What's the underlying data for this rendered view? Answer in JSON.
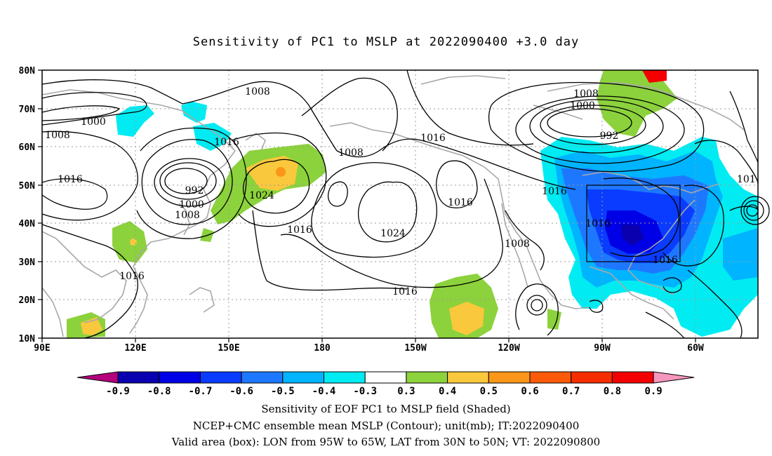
{
  "title": "Sensitivity of PC1 to MSLP at 2022090400 +3.0 day",
  "lat_labels": [
    "80N",
    "70N",
    "60N",
    "50N",
    "40N",
    "30N",
    "20N",
    "10N"
  ],
  "lon_labels": [
    "90E",
    "120E",
    "150E",
    "180",
    "150W",
    "120W",
    "90W",
    "60W"
  ],
  "contour_labels": [
    {
      "text": "1008"
    },
    {
      "text": "1000"
    },
    {
      "text": "1008"
    },
    {
      "text": "1016"
    },
    {
      "text": "1016"
    },
    {
      "text": "992"
    },
    {
      "text": "1000"
    },
    {
      "text": "1008"
    },
    {
      "text": "1024"
    },
    {
      "text": "1016"
    },
    {
      "text": "1016"
    },
    {
      "text": "1008"
    },
    {
      "text": "1016"
    },
    {
      "text": "1024"
    },
    {
      "text": "1016"
    },
    {
      "text": "1016"
    },
    {
      "text": "1008"
    },
    {
      "text": "1008"
    },
    {
      "text": "1000"
    },
    {
      "text": "992"
    },
    {
      "text": "1016"
    },
    {
      "text": "1016"
    },
    {
      "text": "1016"
    },
    {
      "text": "101"
    }
  ],
  "colorbar": {
    "labels": [
      "-0.9",
      "-0.8",
      "-0.7",
      "-0.6",
      "-0.5",
      "-0.4",
      "-0.3",
      "0.3",
      "0.4",
      "0.5",
      "0.6",
      "0.7",
      "0.8",
      "0.9"
    ],
    "colors": [
      "#0a00b0",
      "#0000e6",
      "#0a3cff",
      "#1e78ff",
      "#00b4ff",
      "#00ecf2",
      "#ffffff",
      "#8cd23c",
      "#fac83c",
      "#fa9619",
      "#fa5a0a",
      "#f52d00",
      "#f50000"
    ],
    "end_left": "#b4007d",
    "end_right": "#f596be"
  },
  "captions": [
    "Sensitivity of EOF PC1 to MSLP field (Shaded)",
    "NCEP+CMC ensemble mean MSLP (Contour); unit(mb); IT:2022090400",
    "Valid area (box): LON from 95W to 65W, LAT from 30N to 50N; VT: 2022090800"
  ]
}
